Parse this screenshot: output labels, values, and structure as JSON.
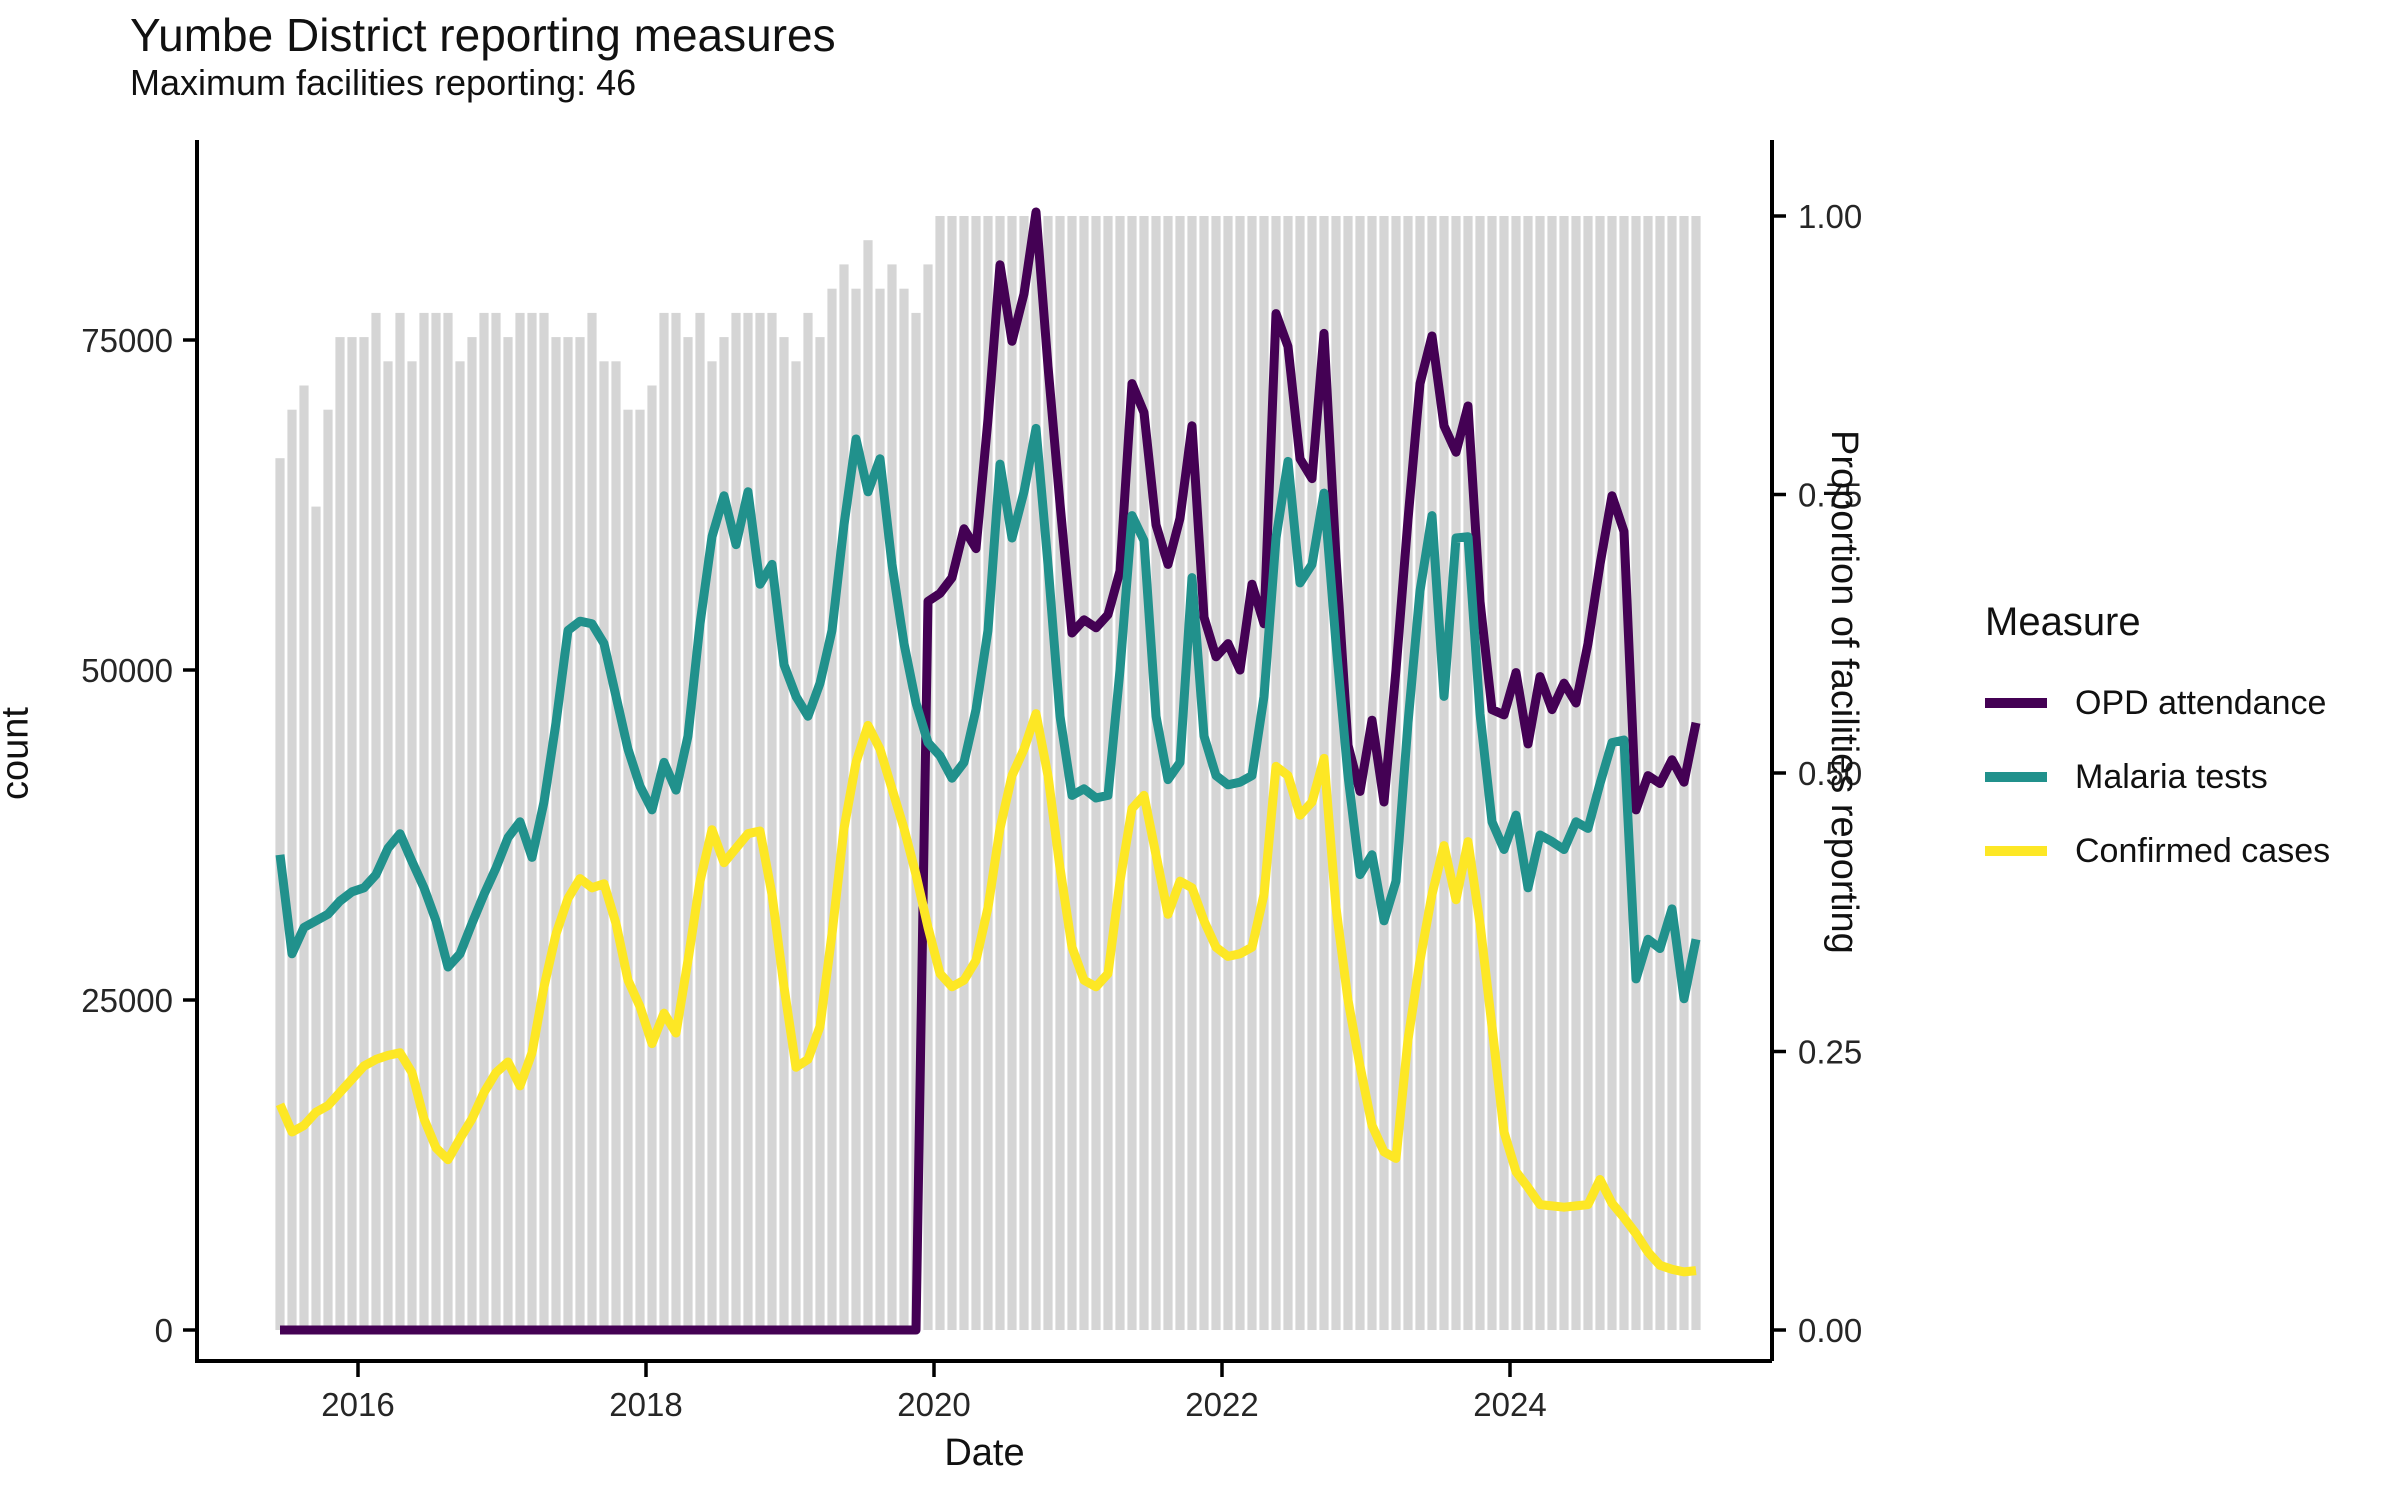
{
  "header": {
    "title": "Yumbe District reporting measures",
    "subtitle": "Maximum facilities reporting: 46"
  },
  "legend": {
    "title": "Measure",
    "items": [
      {
        "label": "OPD attendance",
        "color": "#440154"
      },
      {
        "label": "Malaria tests",
        "color": "#21918c"
      },
      {
        "label": "Confirmed cases",
        "color": "#FDE725"
      }
    ]
  },
  "chart_data": {
    "type": "line",
    "title": "Yumbe District reporting measures",
    "subtitle": "Maximum facilities reporting: 46",
    "xlabel": "Date",
    "ylabel_left": "count",
    "ylabel_right": "Proportion of facilities reporting",
    "legend_title": "Measure",
    "x_start_month": "2015-06",
    "x_end_month": "2025-04",
    "n_months": 119,
    "x_tick_years": [
      2016,
      2018,
      2020,
      2022,
      2024
    ],
    "y_left_ticks": [
      0,
      25000,
      50000,
      75000
    ],
    "y_left_range": [
      0,
      85000
    ],
    "y_right_ticks": [
      "0.00",
      "0.25",
      "0.50",
      "0.75",
      "1.00"
    ],
    "grid": "off",
    "legend_position": "right",
    "max_facilities": 46,
    "bars": {
      "name": "Proportion of facilities reporting",
      "color": "#D5D5D5",
      "denominator": 46,
      "facilities_reporting": [
        36,
        38,
        39,
        34,
        38,
        41,
        41,
        41,
        42,
        40,
        42,
        40,
        42,
        42,
        42,
        40,
        41,
        42,
        42,
        41,
        42,
        42,
        42,
        41,
        41,
        41,
        42,
        40,
        40,
        38,
        38,
        39,
        42,
        42,
        41,
        42,
        40,
        41,
        42,
        42,
        42,
        42,
        41,
        40,
        42,
        41,
        43,
        44,
        43,
        45,
        43,
        44,
        43,
        42,
        44,
        46,
        46,
        46,
        46,
        46,
        46,
        46,
        46,
        46,
        46,
        46,
        46,
        46,
        46,
        46,
        46,
        46,
        46,
        46,
        46,
        46,
        46,
        46,
        46,
        46,
        46,
        46,
        46,
        46,
        46,
        46,
        46,
        46,
        46,
        46,
        46,
        46,
        46,
        46,
        46,
        46,
        46,
        46,
        46,
        46,
        46,
        46,
        46,
        46,
        46,
        46,
        46,
        46,
        46,
        46,
        46,
        46,
        46,
        46,
        46,
        46,
        46,
        46,
        46
      ]
    },
    "series": [
      {
        "name": "OPD attendance",
        "color": "#440154",
        "values": [
          0,
          0,
          0,
          0,
          0,
          0,
          0,
          0,
          0,
          0,
          0,
          0,
          0,
          0,
          0,
          0,
          0,
          0,
          0,
          0,
          0,
          0,
          0,
          0,
          0,
          0,
          0,
          0,
          0,
          0,
          0,
          0,
          0,
          0,
          0,
          0,
          0,
          0,
          0,
          0,
          0,
          0,
          0,
          0,
          0,
          0,
          0,
          0,
          0,
          0,
          0,
          0,
          0,
          0,
          55200,
          55800,
          57000,
          60700,
          59200,
          69000,
          80700,
          74900,
          78500,
          84700,
          73000,
          62600,
          52800,
          53800,
          53200,
          54200,
          57500,
          71700,
          69500,
          61000,
          58000,
          61500,
          68500,
          54000,
          51000,
          52000,
          50000,
          56500,
          53500,
          77000,
          74500,
          66000,
          64500,
          75500,
          58500,
          44300,
          40800,
          46200,
          40000,
          50000,
          61400,
          71700,
          75300,
          68500,
          66500,
          70000,
          55200,
          47000,
          46600,
          49800,
          44400,
          49500,
          47000,
          49000,
          47500,
          52000,
          58000,
          63200,
          60500,
          39400,
          42000,
          41400,
          43200,
          41500,
          46000
        ]
      },
      {
        "name": "Malaria tests",
        "color": "#21918c",
        "values": [
          36000,
          28500,
          30500,
          31000,
          31500,
          32500,
          33200,
          33500,
          34500,
          36500,
          37600,
          35500,
          33500,
          31000,
          27500,
          28500,
          30800,
          33000,
          35000,
          37300,
          38500,
          35800,
          40000,
          46000,
          53000,
          53700,
          53500,
          52000,
          48000,
          44000,
          41200,
          39400,
          43000,
          40900,
          45000,
          53500,
          60100,
          63200,
          59500,
          63500,
          56500,
          58000,
          50400,
          48000,
          46500,
          49000,
          53000,
          61000,
          67500,
          63500,
          66000,
          58000,
          52000,
          47500,
          44500,
          43500,
          41800,
          43000,
          47000,
          53000,
          65600,
          60000,
          63500,
          68300,
          58000,
          46500,
          40500,
          41000,
          40300,
          40500,
          50000,
          61700,
          59800,
          46500,
          41700,
          43000,
          57000,
          45000,
          42000,
          41300,
          41500,
          42000,
          48000,
          60000,
          65800,
          56600,
          58000,
          63400,
          52000,
          42000,
          34500,
          36000,
          31000,
          34000,
          46000,
          56000,
          61700,
          48000,
          60000,
          60100,
          46700,
          38500,
          36400,
          39000,
          33500,
          37500,
          37000,
          36400,
          38500,
          38000,
          41400,
          44500,
          44700,
          26600,
          29600,
          28900,
          31900,
          25100,
          29600
        ]
      },
      {
        "name": "Confirmed cases",
        "color": "#FDE725",
        "values": [
          17100,
          15000,
          15500,
          16500,
          17000,
          18000,
          19000,
          20000,
          20500,
          20800,
          21000,
          19500,
          16000,
          13800,
          12900,
          14500,
          16000,
          18000,
          19500,
          20300,
          18500,
          21000,
          26000,
          30000,
          32700,
          34200,
          33500,
          33800,
          30800,
          26500,
          24500,
          21700,
          24000,
          22500,
          28000,
          34000,
          37900,
          35400,
          36500,
          37600,
          37800,
          33000,
          26000,
          19900,
          20500,
          23000,
          30000,
          38000,
          43000,
          45800,
          44000,
          41000,
          38000,
          34500,
          30500,
          27000,
          26000,
          26500,
          28000,
          32000,
          38000,
          42000,
          44000,
          46700,
          42000,
          35000,
          29000,
          26500,
          26000,
          27000,
          34000,
          39500,
          40500,
          36000,
          31500,
          34000,
          33500,
          31000,
          29000,
          28300,
          28500,
          29000,
          33000,
          42700,
          42000,
          39000,
          40000,
          43300,
          32000,
          25000,
          20000,
          15500,
          13500,
          13000,
          22000,
          28000,
          33000,
          36700,
          32600,
          37000,
          30800,
          23000,
          15000,
          12000,
          10800,
          9500,
          9400,
          9300,
          9400,
          9500,
          11400,
          9600,
          8500,
          7300,
          5900,
          4900,
          4600,
          4400,
          4500
        ]
      }
    ]
  }
}
